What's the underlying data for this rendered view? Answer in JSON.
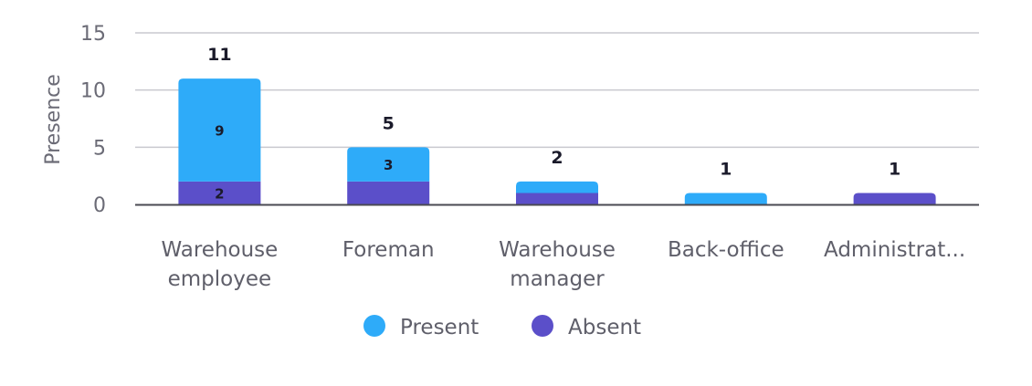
{
  "chart_data": {
    "type": "bar",
    "stacked": true,
    "categories": [
      [
        "Warehouse",
        "employee"
      ],
      [
        "Foreman"
      ],
      [
        "Warehouse",
        "manager"
      ],
      [
        "Back-office"
      ],
      [
        "Administrat..."
      ]
    ],
    "series": [
      {
        "name": "Absent",
        "values": [
          2,
          2,
          1,
          0,
          1
        ],
        "color": "#5b4fc9"
      },
      {
        "name": "Present",
        "values": [
          9,
          3,
          1,
          1,
          0
        ],
        "color": "#2eabf9"
      }
    ],
    "segment_labels": [
      [
        "2",
        "9"
      ],
      [
        null,
        "3"
      ],
      [
        null,
        null
      ],
      [
        null,
        null
      ],
      [
        null,
        null
      ]
    ],
    "totals": [
      11,
      5,
      2,
      1,
      1
    ],
    "ylabel": "Presence",
    "yticks": [
      0,
      5,
      10,
      15
    ],
    "ylim": [
      0,
      15
    ],
    "grid": true,
    "legend": {
      "position": "bottom",
      "items": [
        {
          "name": "Present",
          "color": "#2eabf9"
        },
        {
          "name": "Absent",
          "color": "#5b4fc9"
        }
      ]
    }
  }
}
